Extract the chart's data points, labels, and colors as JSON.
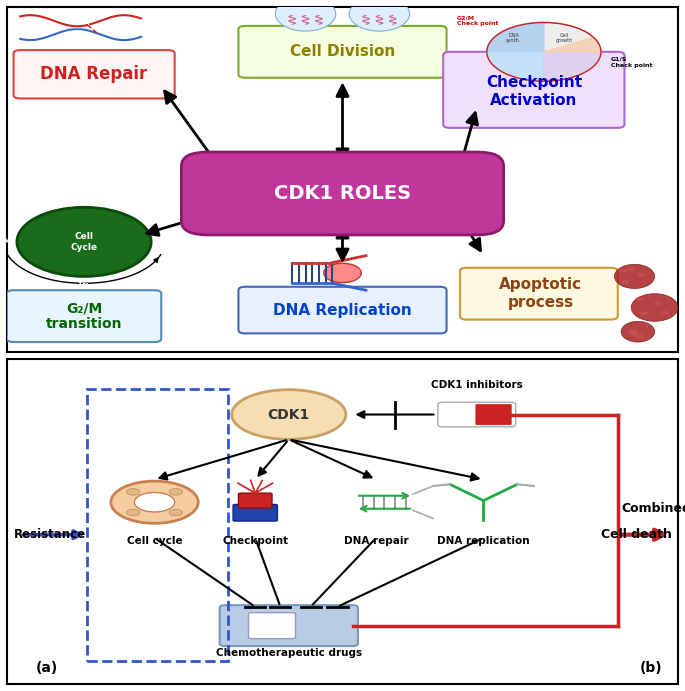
{
  "fig_width": 6.85,
  "fig_height": 6.91,
  "bg_color": "#ffffff",
  "top": {
    "cdk1_roles": "CDK1 ROLES",
    "cdk1_bg": "#c0369a",
    "cdk1_fg": "#ffffff",
    "cell_division_text": "Cell Division",
    "cell_division_bg": "#f5ffe0",
    "cell_division_border": "#7aaa30",
    "cell_division_color": "#8B8000",
    "dna_repair_text": "DNA Repair",
    "dna_repair_bg": "#fff5f5",
    "dna_repair_border": "#dd4444",
    "dna_repair_color": "#cc2222",
    "checkpoint_text": "Checkpoint\nActivation",
    "checkpoint_bg": "#f0e0ff",
    "checkpoint_border": "#aa66cc",
    "checkpoint_color": "#0000cc",
    "g2m_text": "G₂/M\ntransition",
    "g2m_bg": "#e8f4ff",
    "g2m_border": "#5588bb",
    "g2m_color": "#006600",
    "dna_rep_text": "DNA Replication",
    "dna_rep_bg": "#e8f0ff",
    "dna_rep_border": "#4466bb",
    "dna_rep_color": "#0044cc",
    "apoptotic_text": "Apoptotic\nprocess",
    "apoptotic_bg": "#fff8e0",
    "apoptotic_border": "#cc9933",
    "apoptotic_color": "#8B4513"
  },
  "bottom": {
    "cdk1_text": "CDK1",
    "inhibitors_text": "CDK1 inhibitors",
    "drug_text": "Chemotherapeutic drugs",
    "resistance_text": "Resistance",
    "combined_text": "Combined",
    "cell_death_text": "Cell death",
    "label_a": "(a)",
    "label_b": "(b)",
    "node_labels": [
      "Cell cycle",
      "Checkpoint",
      "DNA repair",
      "DNA replication"
    ]
  }
}
